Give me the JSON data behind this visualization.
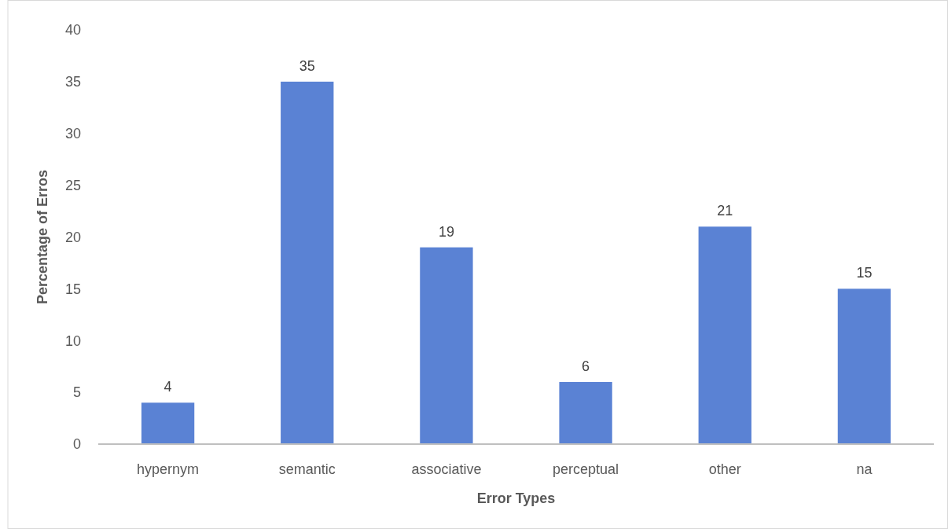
{
  "chart_data": {
    "type": "bar",
    "xlabel": "Error Types",
    "ylabel": "Percentage of Erros",
    "categories": [
      "hypernym",
      "semantic",
      "associative",
      "perceptual",
      "other",
      "na"
    ],
    "values": [
      4,
      35,
      19,
      6,
      21,
      15
    ],
    "color": "#5a82d4",
    "ylim": [
      0,
      40
    ],
    "yticks": [
      0,
      5,
      10,
      15,
      20,
      25,
      30,
      35,
      40
    ],
    "data_labels": true
  }
}
